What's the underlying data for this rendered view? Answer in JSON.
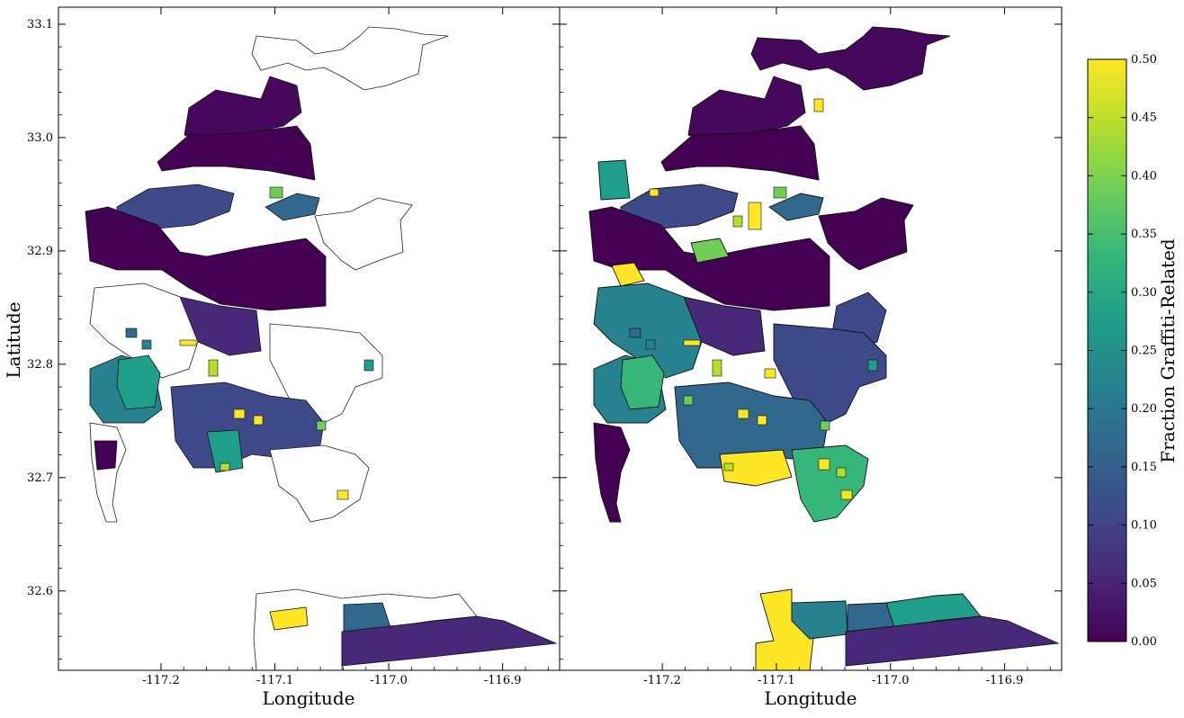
{
  "chart_data": [
    {
      "type": "choropleth",
      "panel": "left",
      "xlabel": "Longitude",
      "ylabel": "Latitude",
      "xlim": [
        -117.29,
        -116.85
      ],
      "ylim": [
        32.53,
        33.115
      ],
      "xticks": [
        "-117.2",
        "-117.1",
        "-117.0",
        "-116.9"
      ],
      "yticks": [
        "32.6",
        "32.7",
        "32.8",
        "32.9",
        "33.0",
        "33.1"
      ],
      "note": "only a subset of tracts filled; many outlined only"
    },
    {
      "type": "choropleth",
      "panel": "right",
      "xlabel": "Longitude",
      "ylabel": "",
      "xlim": [
        -117.29,
        -116.85
      ],
      "ylim": [
        32.53,
        33.115
      ],
      "xticks": [
        "-117.2",
        "-117.1",
        "-117.0",
        "-116.9"
      ],
      "yticks": []
    }
  ],
  "colorbar": {
    "label": "Fraction Graffiti-Related",
    "min": 0.0,
    "max": 0.5,
    "ticks": [
      "0.00",
      "0.05",
      "0.10",
      "0.15",
      "0.20",
      "0.25",
      "0.30",
      "0.35",
      "0.40",
      "0.45",
      "0.50"
    ],
    "colormap": "viridis",
    "colors": [
      "#440154",
      "#482878",
      "#3e4a89",
      "#31688e",
      "#26828e",
      "#1f9e89",
      "#35b779",
      "#6ece58",
      "#b5de2b",
      "#fde725"
    ]
  }
}
